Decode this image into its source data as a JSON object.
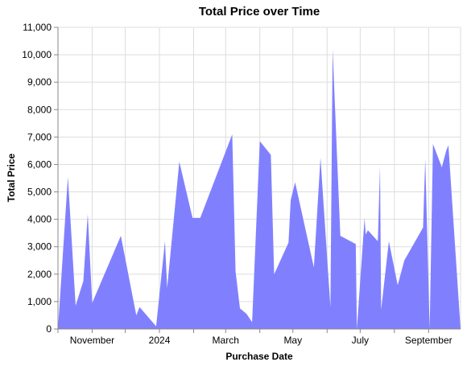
{
  "chart_data": {
    "type": "area",
    "title": "Total Price over Time",
    "xlabel": "Purchase Date",
    "ylabel": "Total Price",
    "ylim": [
      0,
      11000
    ],
    "xlim": [
      "2023-10-01",
      "2024-09-30"
    ],
    "y_ticks": [
      0,
      1000,
      2000,
      3000,
      4000,
      5000,
      6000,
      7000,
      8000,
      9000,
      10000,
      11000
    ],
    "y_tick_labels": [
      "0",
      "1,000",
      "2,000",
      "3,000",
      "4,000",
      "5,000",
      "6,000",
      "7,000",
      "8,000",
      "9,000",
      "10,000",
      "11,000"
    ],
    "x_gridlines": [
      "2023-10-01",
      "2023-11-01",
      "2023-12-01",
      "2024-01-01",
      "2024-02-01",
      "2024-03-01",
      "2024-04-01",
      "2024-05-01",
      "2024-06-01",
      "2024-07-01",
      "2024-08-01",
      "2024-09-01"
    ],
    "x_tick_labels": [
      {
        "date": "2023-11-01",
        "label": "November"
      },
      {
        "date": "2024-01-01",
        "label": "2024"
      },
      {
        "date": "2024-03-01",
        "label": "March"
      },
      {
        "date": "2024-05-01",
        "label": "May"
      },
      {
        "date": "2024-07-01",
        "label": "July"
      },
      {
        "date": "2024-09-01",
        "label": "September"
      }
    ],
    "grid": true,
    "color": "#8080ff",
    "series": [
      {
        "x": [
          "2023-10-01",
          "2023-10-10",
          "2023-10-17",
          "2023-10-24",
          "2023-10-28",
          "2023-11-01",
          "2023-11-27",
          "2023-12-11",
          "2023-12-14",
          "2023-12-29",
          "2024-01-06",
          "2024-01-08",
          "2024-01-19",
          "2024-01-31",
          "2024-02-07",
          "2024-03-07",
          "2024-03-10",
          "2024-03-14",
          "2024-03-20",
          "2024-03-25",
          "2024-04-01",
          "2024-04-11",
          "2024-04-14",
          "2024-04-27",
          "2024-04-29",
          "2024-05-03",
          "2024-05-20",
          "2024-05-26",
          "2024-06-04",
          "2024-06-06",
          "2024-06-13",
          "2024-06-27",
          "2024-06-28",
          "2024-07-05",
          "2024-07-06",
          "2024-07-08",
          "2024-07-17",
          "2024-07-19",
          "2024-07-20",
          "2024-07-27",
          "2024-08-04",
          "2024-08-10",
          "2024-08-27",
          "2024-08-29",
          "2024-09-02",
          "2024-09-05",
          "2024-09-13",
          "2024-09-17",
          "2024-09-19",
          "2024-09-30"
        ],
        "y": [
          0,
          5550,
          850,
          1750,
          4200,
          950,
          3400,
          500,
          800,
          100,
          3200,
          1500,
          6100,
          4050,
          4050,
          7100,
          2100,
          750,
          550,
          250,
          6850,
          6350,
          2000,
          3150,
          4700,
          5350,
          2250,
          6250,
          800,
          10200,
          3400,
          3100,
          0,
          4050,
          3450,
          3600,
          3200,
          5950,
          700,
          3200,
          1600,
          2500,
          3700,
          6200,
          0,
          6750,
          5900,
          6500,
          6700,
          0
        ]
      }
    ]
  }
}
